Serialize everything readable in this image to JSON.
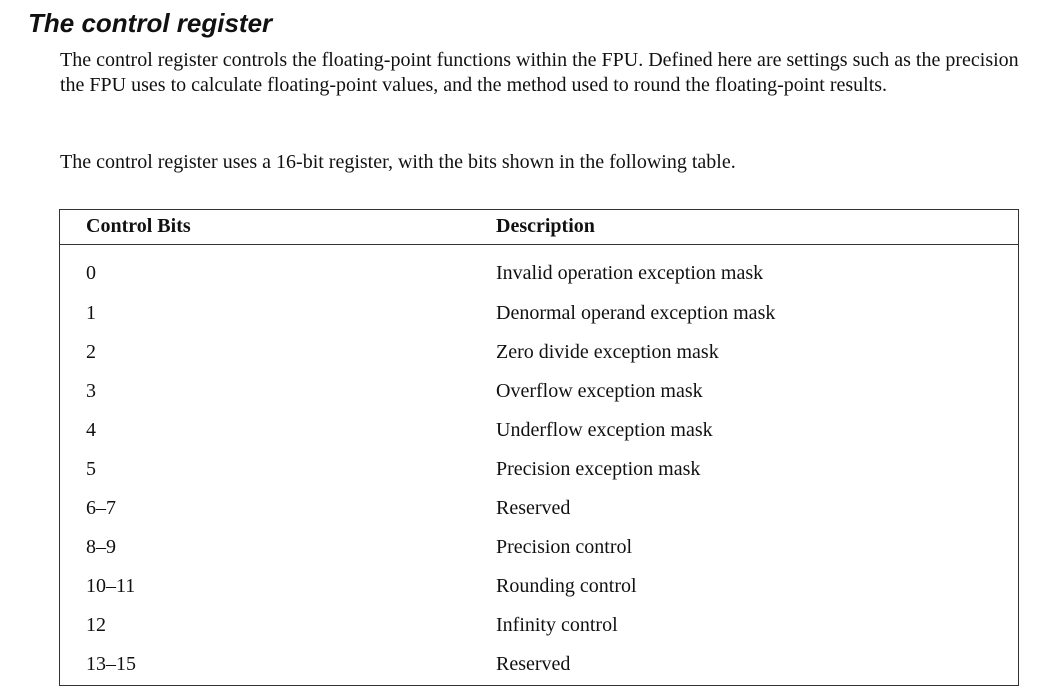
{
  "section": {
    "heading": "The control register",
    "paragraph_1": "The control register controls the floating-point functions within the FPU. Defined here are settings such as the precision the FPU uses to calculate floating-point values, and the method used to round the floating-point results.",
    "paragraph_2": "The control register uses a 16-bit register, with the bits shown in the following table."
  },
  "table": {
    "headers": [
      "Control Bits",
      "Description"
    ],
    "rows": [
      [
        "0",
        "Invalid operation exception mask"
      ],
      [
        "1",
        "Denormal operand exception mask"
      ],
      [
        "2",
        "Zero divide exception mask"
      ],
      [
        "3",
        "Overflow exception mask"
      ],
      [
        "4",
        "Underflow exception mask"
      ],
      [
        "5",
        "Precision exception mask"
      ],
      [
        "6–7",
        "Reserved"
      ],
      [
        "8–9",
        "Precision control"
      ],
      [
        "10–11",
        "Rounding control"
      ],
      [
        "12",
        "Infinity control"
      ],
      [
        "13–15",
        "Reserved"
      ]
    ]
  }
}
